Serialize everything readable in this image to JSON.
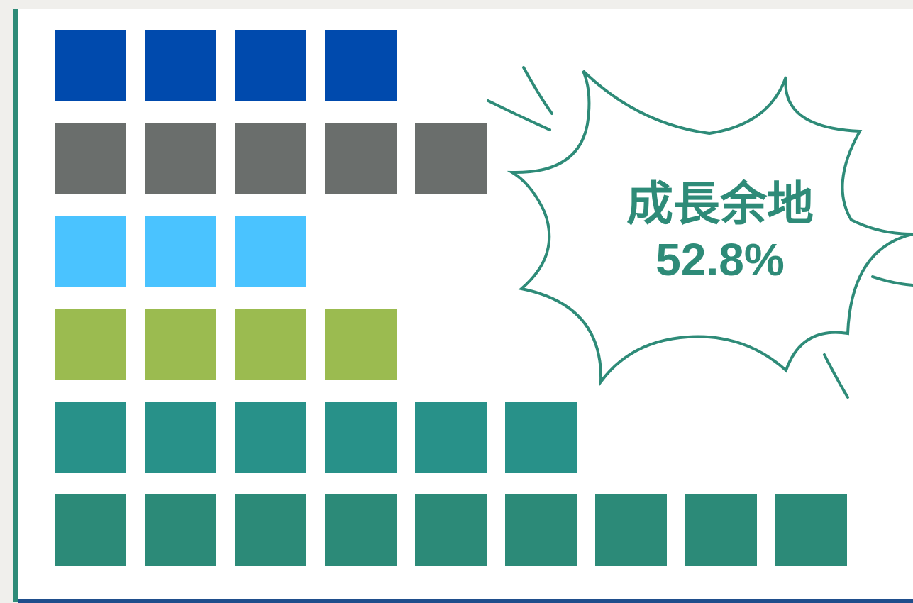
{
  "chart_data": {
    "type": "pictograph",
    "categories": [
      null,
      null,
      null,
      null,
      null,
      null
    ],
    "values": [
      4,
      5,
      3,
      4,
      6,
      9
    ],
    "colors": [
      "#004aad",
      "#6a6e6c",
      "#4ac3ff",
      "#9bbb50",
      "#289189",
      "#2c8a78"
    ],
    "annotation": {
      "title": "成長余地",
      "value": "52.8%"
    }
  }
}
